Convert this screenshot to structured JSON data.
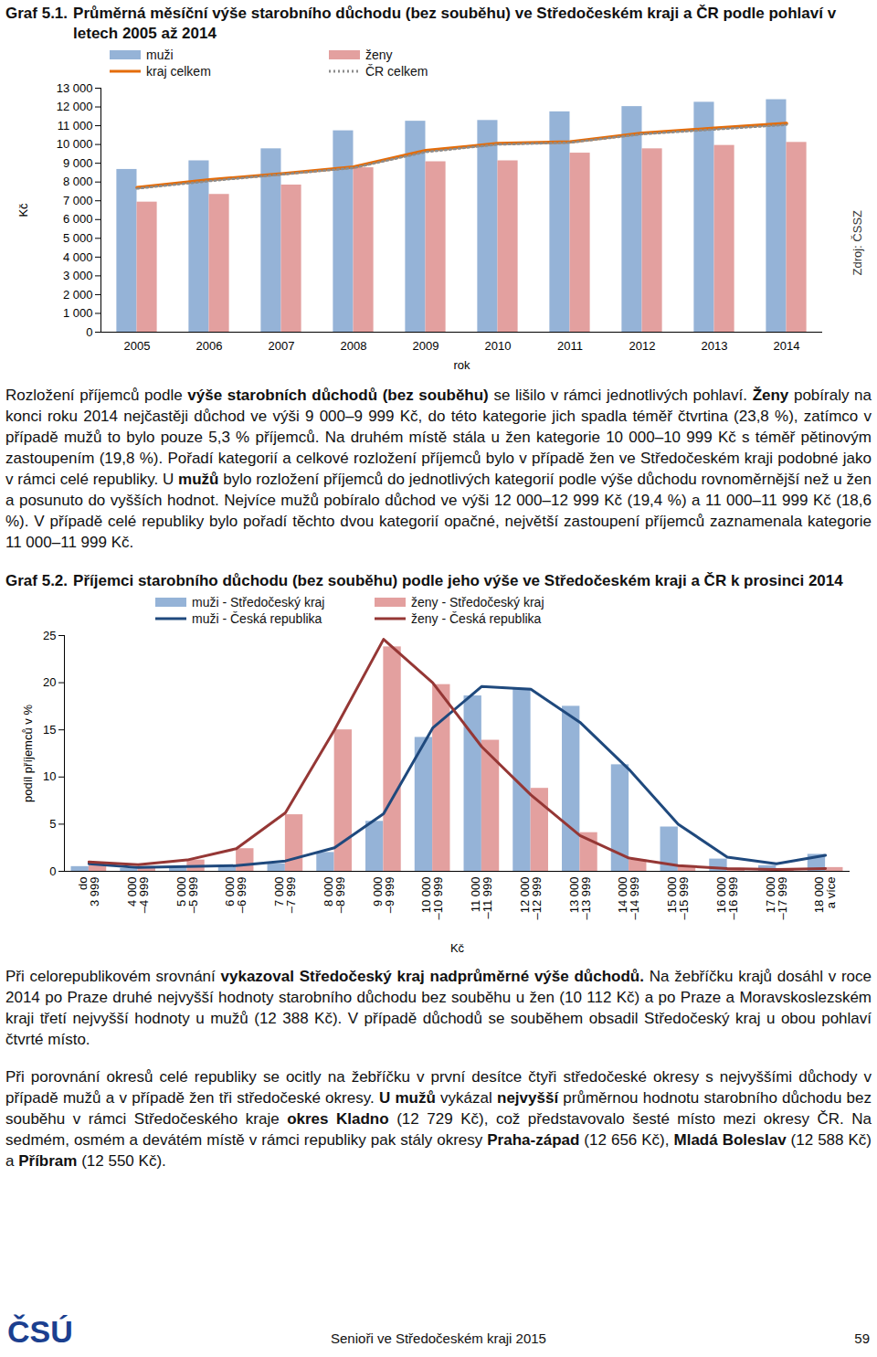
{
  "chart_data": [
    {
      "type": "bar",
      "figure_label": "Graf 5.1.",
      "title": "Průměrná měsíční výše starobního důchodu (bez souběhu) ve Středočeském kraji a ČR podle pohlaví v letech 2005 až 2014",
      "x_label": "rok",
      "y_label": "Kč",
      "source": "Zdroj: ČSSZ",
      "categories": [
        "2005",
        "2006",
        "2007",
        "2008",
        "2009",
        "2010",
        "2011",
        "2012",
        "2013",
        "2014"
      ],
      "series": [
        {
          "name": "muži",
          "type": "bar",
          "color": "#95b3d7",
          "values": [
            8670,
            9130,
            9770,
            10730,
            11240,
            11280,
            11740,
            12020,
            12250,
            12388
          ]
        },
        {
          "name": "ženy",
          "type": "bar",
          "color": "#e3a09f",
          "values": [
            6930,
            7340,
            7840,
            8760,
            9080,
            9130,
            9540,
            9770,
            9950,
            10112
          ]
        },
        {
          "name": "kraj celkem",
          "type": "line",
          "color": "#e46c0a",
          "line_style": "solid",
          "values": [
            7700,
            8120,
            8440,
            8800,
            9680,
            10050,
            10140,
            10600,
            10870,
            11120
          ]
        },
        {
          "name": "ČR celkem",
          "type": "line",
          "color": "#8c8c8c",
          "line_style": "dotted",
          "values": [
            7650,
            8050,
            8400,
            8750,
            9600,
            10000,
            10100,
            10550,
            10800,
            11050
          ]
        }
      ],
      "ylim": [
        0,
        13000
      ],
      "yticks": [
        0,
        {
          "value": 1000,
          "label": "1 000"
        },
        {
          "value": 2000,
          "label": "2 000"
        },
        {
          "value": 3000,
          "label": "3 000"
        },
        {
          "value": 4000,
          "label": "4 000"
        },
        {
          "value": 5000,
          "label": "5 000"
        },
        {
          "value": 6000,
          "label": "6 000"
        },
        {
          "value": 7000,
          "label": "7 000"
        },
        {
          "value": 8000,
          "label": "8 000"
        },
        {
          "value": 9000,
          "label": "9 000"
        },
        {
          "value": 10000,
          "label": "10 000"
        },
        {
          "value": 11000,
          "label": "11 000"
        },
        {
          "value": 12000,
          "label": "12 000"
        },
        {
          "value": 13000,
          "label": "13 000"
        }
      ],
      "grid": false,
      "legend": "top-left"
    },
    {
      "type": "bar",
      "figure_label": "Graf 5.2.",
      "title": "Příjemci starobního důchodu (bez souběhu) podle jeho výše ve Středočeském kraji a ČR k prosinci 2014",
      "x_label": "Kč",
      "y_label": "podíl příjemců v %",
      "categories": [
        "do\n3 999",
        "4 000\n–4 999",
        "5 000\n–5 999",
        "6 000\n–6 999",
        "7 000\n–7 999",
        "8 000\n–8 999",
        "9 000\n–9 999",
        "10 000\n–10 999",
        "11 000\n–11 999",
        "12 000\n–12 999",
        "13 000\n–13 999",
        "14 000\n–14 999",
        "15 000\n–15 999",
        "16 000\n–16 999",
        "17 000\n–17 999",
        "18 000\na více"
      ],
      "series": [
        {
          "name": "muži - Středočeský kraj",
          "type": "bar",
          "color": "#95b3d7",
          "values": [
            0.5,
            0.3,
            0.4,
            0.5,
            0.8,
            2.0,
            5.3,
            14.2,
            18.6,
            19.4,
            17.5,
            11.3,
            4.7,
            1.3,
            0.6,
            1.8
          ]
        },
        {
          "name": "ženy - Středočeský kraj",
          "type": "bar",
          "color": "#e3a09f",
          "values": [
            0.6,
            0.5,
            1.2,
            2.4,
            6.0,
            15.0,
            23.8,
            19.8,
            13.9,
            8.8,
            4.1,
            1.2,
            0.5,
            0.3,
            0.2,
            0.4
          ]
        },
        {
          "name": "muži - Česká republika",
          "type": "line",
          "color": "#1f497d",
          "line_style": "solid",
          "values": [
            0.8,
            0.4,
            0.5,
            0.6,
            1.1,
            2.5,
            6.1,
            15.2,
            19.6,
            19.3,
            15.8,
            10.8,
            5.0,
            1.5,
            0.8,
            1.7
          ]
        },
        {
          "name": "ženy - Česká republika",
          "type": "line",
          "color": "#953735",
          "line_style": "solid",
          "values": [
            1.0,
            0.7,
            1.2,
            2.4,
            6.2,
            15.0,
            24.6,
            20.0,
            13.2,
            8.1,
            3.8,
            1.4,
            0.6,
            0.3,
            0.2,
            0.3
          ]
        }
      ],
      "ylim": [
        0,
        25
      ],
      "yticks": [
        0,
        5,
        10,
        15,
        20,
        25
      ],
      "grid": false,
      "legend": "top"
    }
  ],
  "paragraphs": [
    [
      {
        "text": "Rozložení příjemců podle "
      },
      {
        "text": "výše starobních důchodů (bez souběhu)",
        "bold": true
      },
      {
        "text": " se lišilo v rámci jednotlivých pohlaví. "
      },
      {
        "text": "Ženy",
        "bold": true
      },
      {
        "text": " pobíraly na konci roku 2014 nejčastěji důchod ve výši 9 000–9 999 Kč, do této kategorie jich spadla téměř čtvrtina (23,8 %), zatímco v případě mužů to bylo pouze 5,3 % příjemců. Na druhém místě stála u žen kategorie 10 000–10 999 Kč s téměř pětinovým zastoupením (19,8 %). Pořadí kategorií a celkové rozložení příjemců bylo v případě žen ve Středočeském kraji podobné jako v rámci celé republiky. U "
      },
      {
        "text": "mužů",
        "bold": true
      },
      {
        "text": " bylo rozložení příjemců do jednotlivých kategorií podle výše důchodu rovnoměrnější než u žen a posunuto do vyšších hodnot. Nejvíce mužů pobíralo důchod ve výši 12 000–12 999 Kč (19,4 %) a 11 000–11 999 Kč (18,6 %). V případě celé republiky bylo pořadí těchto dvou kategorií opačné, největší zastoupení příjemců zaznamenala kategorie 11 000–11 999 Kč."
      }
    ],
    [
      {
        "text": "Při celorepublikovém srovnání "
      },
      {
        "text": "vykazoval Středočeský kraj nadprůměrné výše důchodů.",
        "bold": true
      },
      {
        "text": " Na žebříčku krajů dosáhl v roce 2014 po Praze druhé nejvyšší hodnoty starobního důchodu bez souběhu u žen (10 112 Kč) a po Praze a Moravskoslezském kraji třetí nejvyšší hodnoty u mužů (12 388 Kč). V případě důchodů se souběhem obsadil Středočeský kraj u obou pohlaví čtvrté místo."
      }
    ],
    [
      {
        "text": "Při porovnání okresů celé republiky se ocitly na žebříčku v první desítce čtyři středočeské okresy s nejvyššími důchody v případě mužů a v případě žen tři středočeské okresy. "
      },
      {
        "text": "U mužů",
        "bold": true
      },
      {
        "text": " vykázal "
      },
      {
        "text": "nejvyšší",
        "bold": true
      },
      {
        "text": " průměrnou hodnotu starobního důchodu bez souběhu v rámci Středočeského kraje "
      },
      {
        "text": "okres Kladno",
        "bold": true
      },
      {
        "text": " (12 729 Kč), což představovalo šesté místo mezi okresy ČR. Na sedmém, osmém a devátém místě v rámci republiky pak stály okresy "
      },
      {
        "text": "Praha-západ",
        "bold": true
      },
      {
        "text": " (12 656 Kč), "
      },
      {
        "text": "Mladá Boleslav",
        "bold": true
      },
      {
        "text": " (12 588 Kč) a "
      },
      {
        "text": "Příbram",
        "bold": true
      },
      {
        "text": " (12 550 Kč)."
      }
    ]
  ],
  "footer": {
    "logo": "ČSÚ",
    "publication": "Senioři ve Středočeském kraji 2015",
    "page": 59
  }
}
